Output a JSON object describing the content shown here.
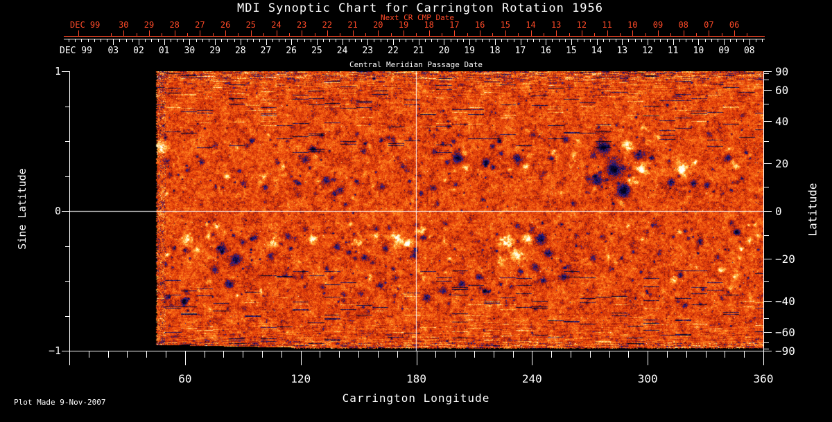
{
  "title": "MDI Synoptic Chart for Carrington Rotation 1956",
  "footer": {
    "plot_made": "Plot Made  9-Nov-2007"
  },
  "axes": {
    "next_cr": {
      "label": "Next CR CMP Date",
      "month": "DEC 99",
      "days": [
        "30",
        "29",
        "28",
        "27",
        "26",
        "25",
        "24",
        "23",
        "22",
        "21",
        "20",
        "19",
        "18",
        "17",
        "16",
        "15",
        "14",
        "13",
        "12",
        "11",
        "10",
        "09",
        "08",
        "07",
        "06"
      ],
      "color": "#ff4a28"
    },
    "cmp": {
      "label": "Central Meridian Passage Date",
      "month": "DEC 99",
      "days": [
        "03",
        "02",
        "01",
        "30",
        "29",
        "28",
        "27",
        "26",
        "25",
        "24",
        "23",
        "22",
        "21",
        "20",
        "19",
        "18",
        "17",
        "16",
        "15",
        "14",
        "13",
        "12",
        "11",
        "10",
        "09",
        "08"
      ]
    },
    "longitude": {
      "label": "Carrington Longitude",
      "ticks": [
        "60",
        "120",
        "180",
        "240",
        "300",
        "360"
      ]
    },
    "sine_latitude": {
      "label": "Sine Latitude",
      "ticks": [
        "1",
        "0",
        "−1"
      ]
    },
    "latitude": {
      "label": "Latitude",
      "ticks": [
        "90",
        "60",
        "40",
        "20",
        "0",
        "−20",
        "−40",
        "−60",
        "−90"
      ]
    }
  },
  "chart_data": {
    "type": "heatmap",
    "title": "MDI Synoptic Chart for Carrington Rotation 1956",
    "xlabel": "Carrington Longitude",
    "x_range": [
      0,
      360
    ],
    "x_major_step_deg": 60,
    "x_minor_step_deg": 10,
    "ylabel_left": "Sine Latitude",
    "y_range": [
      -1,
      1
    ],
    "ylabel_right": "Latitude",
    "latitude_tick_step_deg": 10,
    "data_gap_longitude": [
      0,
      45
    ],
    "crosshair": {
      "longitude": 180,
      "sine_latitude": 0
    },
    "background": "#000000",
    "colormap": [
      [
        -1.0,
        "#000008"
      ],
      [
        -0.8,
        "#00000a"
      ],
      [
        -0.5,
        "#0a0a3c"
      ],
      [
        -0.34,
        "#2d23a0"
      ],
      [
        -0.24,
        "#781414"
      ],
      [
        -0.1,
        "#cd2d08"
      ],
      [
        0.1,
        "#f5550f"
      ],
      [
        0.28,
        "#ff8c23"
      ],
      [
        0.42,
        "#ffd25a"
      ],
      [
        0.55,
        "#fff5be"
      ],
      [
        0.7,
        "#ffffff"
      ],
      [
        1.0,
        "#ffffff"
      ]
    ],
    "noise": {
      "seed": 1956,
      "fine_amp": 0.33,
      "mottle_amp": 0.3,
      "coarse_amp": 0.22,
      "base_level": 0.035
    },
    "scatter": {
      "dark_count": 260,
      "bright_count": 90,
      "blue_speck_count": 170,
      "bands_sine_lat": [
        [
          0.05,
          0.62
        ],
        [
          -0.7,
          -0.08
        ]
      ]
    },
    "active_regions": [
      [
        47.8,
        0.45,
        8,
        0.55
      ],
      [
        50.4,
        0.36,
        6,
        -0.4
      ],
      [
        107.9,
        0.35,
        4,
        -0.35
      ],
      [
        115.1,
        0.25,
        3,
        -0.3
      ],
      [
        126.6,
        0.44,
        5,
        -0.4
      ],
      [
        122.3,
        0.37,
        7,
        -0.5
      ],
      [
        127.7,
        0.3,
        4,
        0.35
      ],
      [
        133.1,
        0.22,
        6,
        -0.45
      ],
      [
        140.3,
        0.15,
        5,
        -0.4
      ],
      [
        143.9,
        0.23,
        3,
        0.3
      ],
      [
        118.7,
        0.12,
        5,
        -0.35
      ],
      [
        89.9,
        0.2,
        4,
        -0.3
      ],
      [
        100.7,
        0.27,
        3,
        -0.3
      ],
      [
        161.9,
        0.17,
        5,
        -0.35
      ],
      [
        154.7,
        0.25,
        4,
        -0.3
      ],
      [
        172.7,
        0.32,
        4,
        -0.35
      ],
      [
        181.7,
        0.25,
        3,
        -0.3
      ],
      [
        188.8,
        0.17,
        4,
        -0.35
      ],
      [
        201.4,
        0.38,
        8,
        -0.55
      ],
      [
        205.8,
        0.31,
        5,
        0.45
      ],
      [
        196.0,
        0.35,
        4,
        -0.4
      ],
      [
        215.8,
        0.35,
        6,
        -0.5
      ],
      [
        213.0,
        0.28,
        4,
        0.35
      ],
      [
        232.0,
        0.38,
        7,
        -0.5
      ],
      [
        236.7,
        0.32,
        5,
        0.45
      ],
      [
        228.4,
        0.3,
        3,
        0.3
      ],
      [
        277.0,
        0.45,
        10,
        -0.6
      ],
      [
        282.4,
        0.3,
        12,
        -0.65
      ],
      [
        287.7,
        0.15,
        10,
        -0.6
      ],
      [
        273.4,
        0.22,
        8,
        -0.5
      ],
      [
        295.0,
        0.4,
        8,
        -0.5
      ],
      [
        289.6,
        0.47,
        7,
        0.5
      ],
      [
        296.8,
        0.3,
        8,
        0.6
      ],
      [
        291.4,
        0.22,
        6,
        0.5
      ],
      [
        300.4,
        0.5,
        5,
        0.45
      ],
      [
        286.0,
        0.07,
        5,
        0.4
      ],
      [
        318.4,
        0.3,
        9,
        0.6
      ],
      [
        312.2,
        0.21,
        6,
        -0.5
      ],
      [
        323.7,
        0.2,
        5,
        -0.45
      ],
      [
        324.5,
        0.35,
        4,
        0.4
      ],
      [
        341.7,
        0.38,
        6,
        -0.5
      ],
      [
        346.0,
        0.32,
        4,
        0.4
      ],
      [
        201.4,
        0.55,
        3,
        -0.3
      ],
      [
        223.0,
        0.5,
        3,
        -0.3
      ],
      [
        251.8,
        0.52,
        3,
        -0.3
      ],
      [
        61.2,
        -0.2,
        8,
        0.55
      ],
      [
        66.5,
        -0.28,
        6,
        0.45
      ],
      [
        71.9,
        -0.17,
        5,
        0.4
      ],
      [
        79.1,
        -0.27,
        7,
        -0.5
      ],
      [
        86.3,
        -0.35,
        8,
        -0.5
      ],
      [
        75.5,
        -0.42,
        6,
        -0.45
      ],
      [
        89.9,
        -0.22,
        5,
        -0.4
      ],
      [
        82.7,
        -0.52,
        6,
        -0.45
      ],
      [
        71.9,
        -0.51,
        4,
        0.35
      ],
      [
        106.1,
        -0.22,
        7,
        0.5
      ],
      [
        113.3,
        -0.18,
        5,
        -0.4
      ],
      [
        104.3,
        -0.32,
        5,
        -0.4
      ],
      [
        125.9,
        -0.2,
        6,
        0.5
      ],
      [
        132.4,
        -0.16,
        4,
        0.4
      ],
      [
        138.5,
        -0.25,
        5,
        -0.4
      ],
      [
        149.3,
        -0.22,
        7,
        0.5
      ],
      [
        158.3,
        -0.18,
        5,
        0.4
      ],
      [
        152.9,
        -0.33,
        5,
        -0.4
      ],
      [
        163.7,
        -0.27,
        5,
        -0.45
      ],
      [
        155.4,
        -0.47,
        5,
        0.4
      ],
      [
        161.1,
        -0.53,
        5,
        -0.4
      ],
      [
        151.1,
        -0.59,
        5,
        -0.35
      ],
      [
        169.1,
        -0.2,
        9,
        0.6
      ],
      [
        175.5,
        -0.23,
        6,
        0.5
      ],
      [
        179.9,
        -0.28,
        4,
        -0.35
      ],
      [
        165.5,
        -0.12,
        4,
        -0.3
      ],
      [
        182.7,
        -0.14,
        6,
        0.5
      ],
      [
        194.2,
        -0.22,
        4,
        0.35
      ],
      [
        199.6,
        -0.27,
        3,
        -0.3
      ],
      [
        185.3,
        -0.62,
        6,
        -0.45
      ],
      [
        194.2,
        -0.57,
        6,
        -0.45
      ],
      [
        203.2,
        -0.52,
        5,
        -0.45
      ],
      [
        212.2,
        -0.47,
        5,
        -0.45
      ],
      [
        215.8,
        -0.57,
        5,
        -0.4
      ],
      [
        226.6,
        -0.67,
        5,
        -0.35
      ],
      [
        226.6,
        -0.22,
        9,
        0.6
      ],
      [
        232.0,
        -0.31,
        8,
        0.55
      ],
      [
        223.7,
        -0.36,
        6,
        0.45
      ],
      [
        237.4,
        -0.2,
        6,
        0.5
      ],
      [
        239.2,
        -0.12,
        6,
        -0.45
      ],
      [
        244.6,
        -0.2,
        8,
        -0.6
      ],
      [
        248.2,
        -0.3,
        7,
        -0.55
      ],
      [
        241.7,
        -0.4,
        6,
        -0.45
      ],
      [
        232.0,
        -0.1,
        5,
        -0.4
      ],
      [
        256.1,
        -0.47,
        6,
        -0.45
      ],
      [
        260.8,
        -0.43,
        4,
        -0.35
      ],
      [
        271.6,
        -0.33,
        5,
        -0.35
      ],
      [
        280.6,
        -0.42,
        4,
        -0.3
      ],
      [
        338.1,
        -0.42,
        6,
        0.45
      ],
      [
        345.3,
        -0.47,
        5,
        0.4
      ],
      [
        352.5,
        -0.22,
        5,
        0.4
      ],
      [
        356.8,
        -0.17,
        4,
        0.35
      ],
      [
        343.5,
        -0.55,
        4,
        0.3
      ],
      [
        336.3,
        -0.32,
        4,
        -0.3
      ],
      [
        348.9,
        -0.4,
        3,
        -0.3
      ],
      [
        50.4,
        -0.62,
        4,
        -0.3
      ],
      [
        59.4,
        -0.66,
        4,
        -0.3
      ],
      [
        120.5,
        -0.47,
        5,
        -0.35
      ],
      [
        131.3,
        -0.54,
        5,
        -0.35
      ],
      [
        142.1,
        -0.59,
        4,
        -0.3
      ]
    ]
  }
}
